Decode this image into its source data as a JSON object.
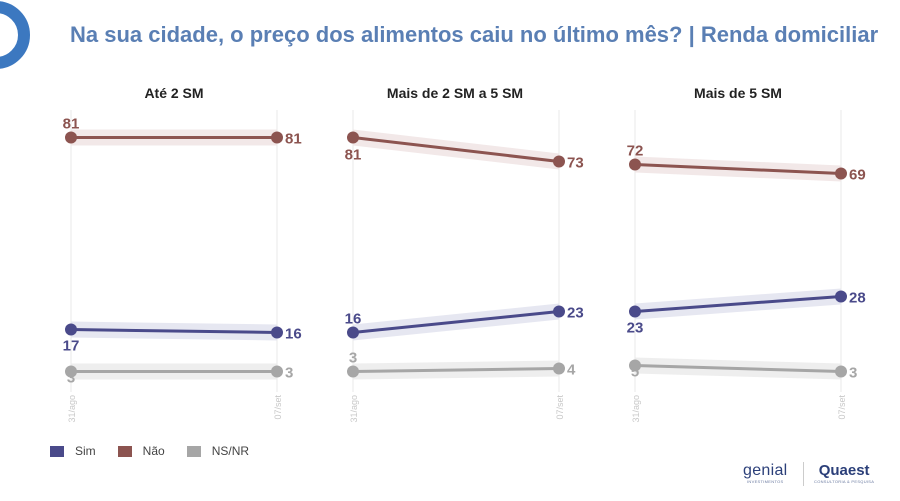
{
  "title": "Na sua cidade, o preço dos alimentos caiu no último mês? | Renda domiciliar",
  "legend": [
    {
      "label": "Sim",
      "color": "#4a4a8a"
    },
    {
      "label": "Não",
      "color": "#8c5450"
    },
    {
      "label": "NS/NR",
      "color": "#a6a6a6"
    }
  ],
  "brands": {
    "genial": {
      "name": "genial",
      "sub": "INVESTIMENTOS"
    },
    "quaest": {
      "name": "Quaest",
      "sub": "CONSULTORIA & PESQUISA"
    }
  },
  "chart_data": [
    {
      "type": "line",
      "title": "Até 2 SM",
      "x": [
        "31/ago",
        "07/set"
      ],
      "ylim": [
        0,
        100
      ],
      "series": [
        {
          "name": "Sim",
          "values": [
            17,
            16
          ]
        },
        {
          "name": "Não",
          "values": [
            81,
            81
          ]
        },
        {
          "name": "NS/NR",
          "values": [
            3,
            3
          ]
        }
      ]
    },
    {
      "type": "line",
      "title": "Mais de 2 SM a 5 SM",
      "x": [
        "31/ago",
        "07/set"
      ],
      "ylim": [
        0,
        100
      ],
      "series": [
        {
          "name": "Sim",
          "values": [
            16,
            23
          ]
        },
        {
          "name": "Não",
          "values": [
            81,
            73
          ]
        },
        {
          "name": "NS/NR",
          "values": [
            3,
            4
          ]
        }
      ]
    },
    {
      "type": "line",
      "title": "Mais de 5 SM",
      "x": [
        "31/ago",
        "07/set"
      ],
      "ylim": [
        0,
        100
      ],
      "series": [
        {
          "name": "Sim",
          "values": [
            23,
            28
          ]
        },
        {
          "name": "Não",
          "values": [
            72,
            69
          ]
        },
        {
          "name": "NS/NR",
          "values": [
            5,
            3
          ]
        }
      ]
    }
  ]
}
